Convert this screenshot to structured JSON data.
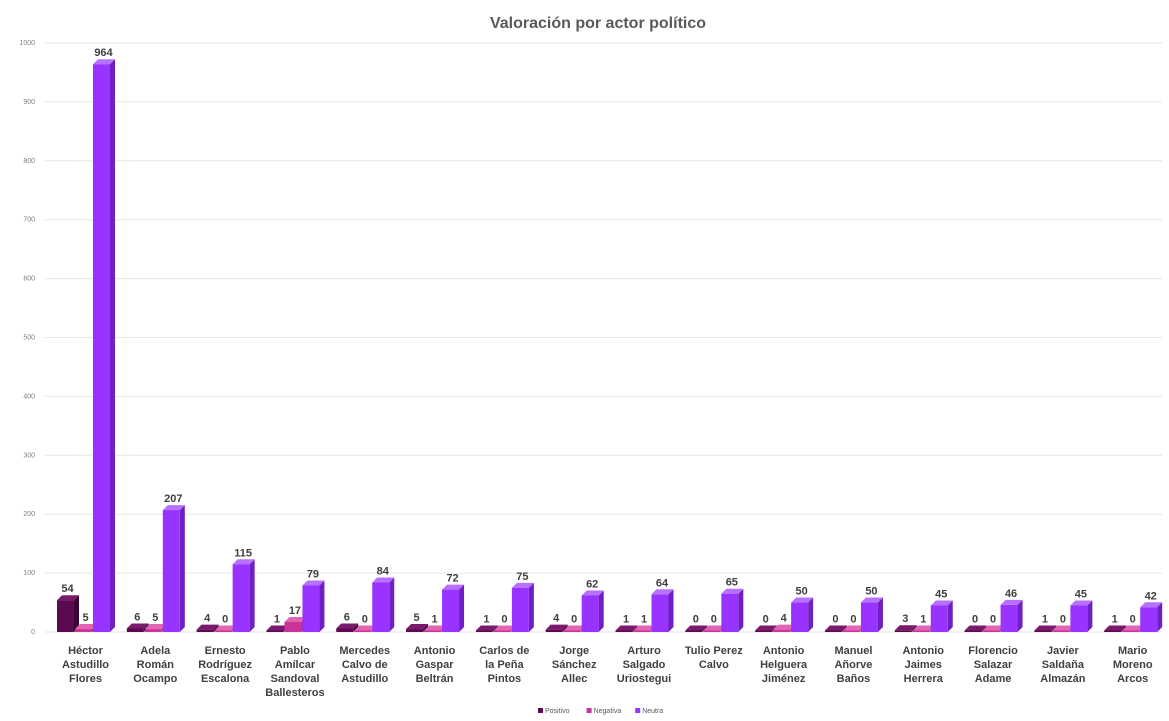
{
  "chart_data": {
    "type": "bar",
    "title": "Valoración por actor político",
    "xlabel": "",
    "ylabel": "",
    "ylim": [
      0,
      1000
    ],
    "yticks": [
      "0",
      "100",
      "200",
      "300",
      "400",
      "500",
      "600",
      "700",
      "800",
      "900",
      "1000"
    ],
    "grid": true,
    "legend_position": "bottom",
    "categories": [
      [
        "Héctor",
        "Astudillo",
        "Flores"
      ],
      [
        "Adela",
        "Román",
        "Ocampo"
      ],
      [
        "Ernesto",
        "Rodríguez",
        "Escalona"
      ],
      [
        "Pablo",
        "Amílcar",
        "Sandoval",
        "Ballesteros"
      ],
      [
        "Mercedes",
        "Calvo de",
        "Astudillo"
      ],
      [
        "Antonio",
        "Gaspar",
        "Beltrán"
      ],
      [
        "Carlos de",
        "la Peña",
        "Pintos"
      ],
      [
        "Jorge",
        "Sánchez",
        "Allec"
      ],
      [
        "Arturo",
        "Salgado",
        "Uriostegui"
      ],
      [
        "Tulio Perez",
        "Calvo"
      ],
      [
        "Antonio",
        "Helguera",
        "Jiménez"
      ],
      [
        "Manuel",
        "Añorve",
        "Baños"
      ],
      [
        "Antonio",
        "Jaimes",
        "Herrera"
      ],
      [
        "Florencio",
        "Salazar",
        "Adame"
      ],
      [
        "Javier",
        "Saldaña",
        "Almazán"
      ],
      [
        "Mario",
        "Moreno",
        "Arcos"
      ]
    ],
    "series": [
      {
        "name": "Positivo",
        "color": "#5b0a4f",
        "color_side": "#3a0633",
        "color_top": "#7a1a6c",
        "values": [
          54,
          6,
          4,
          1,
          6,
          5,
          1,
          4,
          1,
          0,
          0,
          0,
          3,
          0,
          1,
          1
        ]
      },
      {
        "name": "Negativa",
        "color": "#cc3399",
        "color_side": "#992673",
        "color_top": "#e066b3",
        "values": [
          5,
          5,
          0,
          17,
          0,
          1,
          0,
          0,
          1,
          0,
          4,
          0,
          1,
          0,
          0,
          0
        ]
      },
      {
        "name": "Neutra",
        "color": "#9933ff",
        "color_side": "#6f1fc2",
        "color_top": "#b870ff",
        "values": [
          964,
          207,
          115,
          79,
          84,
          72,
          75,
          62,
          64,
          65,
          50,
          50,
          45,
          46,
          45,
          42
        ]
      }
    ]
  }
}
